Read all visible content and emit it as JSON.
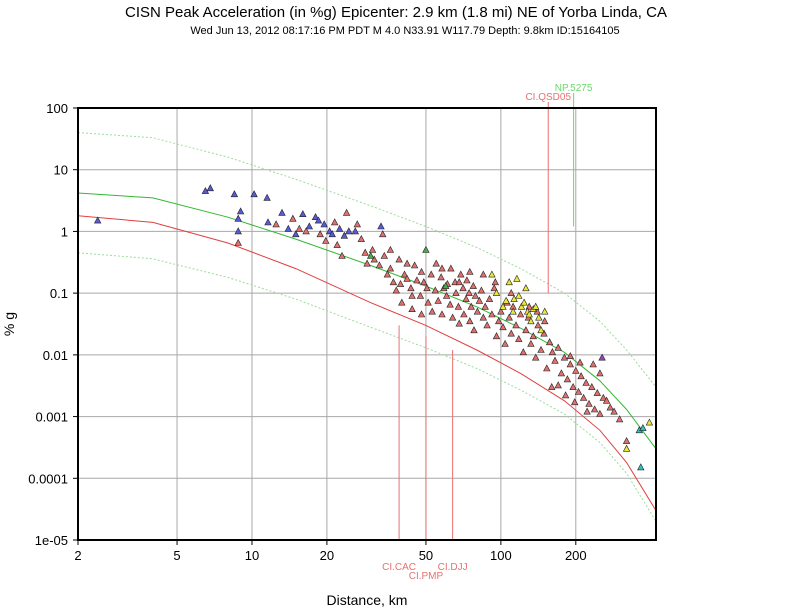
{
  "chart_data": {
    "type": "scatter",
    "title": "CISN Peak Acceleration (in %g) Epicenter: 2.9 km (1.8 mi) NE of Yorba Linda, CA",
    "subtitle": "Wed Jun 13, 2012 08:17:16 PM PDT   M 4.0    N33.91 W117.79   Depth: 9.8km   ID:15164105",
    "xlabel": "Distance, km",
    "ylabel": "% g",
    "xscale": "log",
    "yscale": "log",
    "xlim": [
      2,
      420
    ],
    "ylim": [
      1e-05,
      100
    ],
    "grid": true,
    "x_ticks": [
      {
        "v": 2,
        "label": "2"
      },
      {
        "v": 5,
        "label": "5"
      },
      {
        "v": 10,
        "label": "10"
      },
      {
        "v": 20,
        "label": "20"
      },
      {
        "v": 50,
        "label": "50"
      },
      {
        "v": 100,
        "label": "100"
      },
      {
        "v": 200,
        "label": "200"
      }
    ],
    "y_ticks": [
      {
        "v": 100,
        "label": "100"
      },
      {
        "v": 10,
        "label": "10"
      },
      {
        "v": 1,
        "label": "1"
      },
      {
        "v": 0.1,
        "label": "0.1"
      },
      {
        "v": 0.01,
        "label": "0.01"
      },
      {
        "v": 0.001,
        "label": "0.001"
      },
      {
        "v": 0.0001,
        "label": "0.0001"
      },
      {
        "v": 1e-05,
        "label": "1e-05"
      }
    ],
    "curves": [
      {
        "id": "upper-bound",
        "color": "#9bdc9b",
        "dash": true,
        "x": [
          2,
          4,
          8,
          15,
          30,
          50,
          80,
          120,
          180,
          250,
          320,
          420
        ],
        "y": [
          40,
          33,
          16,
          7,
          2.6,
          1.2,
          0.55,
          0.25,
          0.1,
          0.035,
          0.012,
          0.003
        ]
      },
      {
        "id": "median-green",
        "color": "#33b833",
        "dash": false,
        "x": [
          2,
          4,
          8,
          15,
          30,
          50,
          80,
          120,
          180,
          250,
          320,
          420
        ],
        "y": [
          4.2,
          3.5,
          1.7,
          0.75,
          0.28,
          0.13,
          0.06,
          0.027,
          0.011,
          0.0038,
          0.0013,
          0.0003
        ]
      },
      {
        "id": "median-red",
        "color": "#e04040",
        "dash": false,
        "x": [
          2,
          4,
          8,
          15,
          30,
          50,
          80,
          120,
          180,
          250,
          320,
          420
        ],
        "y": [
          1.8,
          1.4,
          0.65,
          0.25,
          0.07,
          0.03,
          0.012,
          0.005,
          0.0018,
          0.0006,
          0.00018,
          3e-05
        ]
      },
      {
        "id": "lower-bound",
        "color": "#9bdc9b",
        "dash": true,
        "x": [
          2,
          4,
          8,
          15,
          30,
          50,
          80,
          120,
          180,
          250,
          320,
          420
        ],
        "y": [
          0.45,
          0.36,
          0.18,
          0.08,
          0.028,
          0.013,
          0.006,
          0.0027,
          0.0011,
          0.00038,
          0.00012,
          2e-05
        ]
      }
    ],
    "station_labels": [
      {
        "text": "NP.5275",
        "x": 196,
        "y": 1.2,
        "color": "#6cd86c",
        "side": "top",
        "row": 0
      },
      {
        "text": "CI.QSD05",
        "x": 155,
        "y": 0.1,
        "color": "#e87070",
        "side": "top",
        "row": 1
      },
      {
        "text": "CI.CAC",
        "x": 39,
        "y": 0.03,
        "color": "#e87070",
        "side": "bottom",
        "row": 0
      },
      {
        "text": "CI.PMP",
        "x": 50,
        "y": 0.02,
        "color": "#e87070",
        "side": "bottom",
        "row": 1
      },
      {
        "text": "CI.DJJ",
        "x": 64,
        "y": 0.012,
        "color": "#e87070",
        "side": "bottom",
        "row": 0
      }
    ],
    "series": [
      {
        "color": "#5a5ad6",
        "points": [
          [
            2.4,
            1.5
          ],
          [
            6.5,
            4.5
          ],
          [
            6.8,
            5.0
          ],
          [
            8.5,
            4.0
          ],
          [
            8.8,
            1.6
          ],
          [
            9.0,
            2.1
          ],
          [
            10.2,
            4.0
          ],
          [
            11.5,
            3.5
          ],
          [
            11.6,
            1.4
          ],
          [
            13.2,
            2.0
          ],
          [
            14.0,
            1.1
          ],
          [
            16.0,
            1.9
          ],
          [
            17.0,
            1.2
          ],
          [
            18.0,
            1.7
          ],
          [
            18.5,
            1.5
          ],
          [
            19.5,
            1.3
          ],
          [
            20.5,
            1.0
          ],
          [
            21.0,
            0.9
          ],
          [
            22.5,
            1.1
          ],
          [
            24.5,
            1.0
          ],
          [
            26.0,
            1.0
          ],
          [
            33.0,
            1.2
          ],
          [
            8.8,
            1.0
          ],
          [
            15.0,
            0.9
          ],
          [
            23.5,
            0.85
          ]
        ]
      },
      {
        "color": "#e07070",
        "points": [
          [
            8.8,
            0.65
          ],
          [
            12.5,
            1.3
          ],
          [
            14.6,
            1.6
          ],
          [
            15.5,
            1.1
          ],
          [
            16.5,
            1.0
          ],
          [
            18.8,
            0.9
          ],
          [
            19.8,
            0.7
          ],
          [
            21.5,
            1.4
          ],
          [
            22.0,
            0.6
          ],
          [
            23.0,
            0.4
          ],
          [
            24.0,
            2.0
          ],
          [
            26.5,
            1.3
          ],
          [
            27.5,
            0.75
          ],
          [
            28.5,
            0.45
          ],
          [
            29.0,
            0.3
          ],
          [
            30.5,
            0.5
          ],
          [
            31.0,
            0.35
          ],
          [
            32.5,
            0.28
          ],
          [
            33.5,
            0.9
          ],
          [
            34.0,
            0.4
          ],
          [
            35.0,
            0.2
          ],
          [
            36.0,
            0.25
          ],
          [
            37.0,
            0.15
          ],
          [
            38.0,
            0.11
          ],
          [
            39.0,
            0.35
          ],
          [
            39.5,
            0.14
          ],
          [
            40.0,
            0.07
          ],
          [
            41.0,
            0.2
          ],
          [
            42.0,
            0.17
          ],
          [
            43.5,
            0.12
          ],
          [
            44.0,
            0.055
          ],
          [
            45.0,
            0.28
          ],
          [
            46.0,
            0.16
          ],
          [
            47.5,
            0.09
          ],
          [
            48.0,
            0.045
          ],
          [
            49.0,
            0.15
          ],
          [
            50.5,
            0.12
          ],
          [
            51.0,
            0.07
          ],
          [
            52.5,
            0.2
          ],
          [
            53.0,
            0.05
          ],
          [
            54.5,
            0.11
          ],
          [
            55.0,
            0.3
          ],
          [
            56.0,
            0.075
          ],
          [
            57.5,
            0.18
          ],
          [
            58.0,
            0.045
          ],
          [
            59.0,
            0.12
          ],
          [
            60.5,
            0.09
          ],
          [
            61.0,
            0.14
          ],
          [
            62.5,
            0.065
          ],
          [
            63.0,
            0.25
          ],
          [
            64.0,
            0.04
          ],
          [
            65.5,
            0.15
          ],
          [
            66.0,
            0.1
          ],
          [
            67.5,
            0.06
          ],
          [
            68.0,
            0.032
          ],
          [
            69.0,
            0.2
          ],
          [
            70.5,
            0.12
          ],
          [
            71.0,
            0.045
          ],
          [
            72.5,
            0.08
          ],
          [
            73.0,
            0.16
          ],
          [
            74.5,
            0.1
          ],
          [
            75.0,
            0.035
          ],
          [
            76.0,
            0.06
          ],
          [
            77.5,
            0.13
          ],
          [
            78.0,
            0.025
          ],
          [
            79.0,
            0.09
          ],
          [
            80.5,
            0.05
          ],
          [
            82.0,
            0.075
          ],
          [
            83.5,
            0.11
          ],
          [
            85.0,
            0.04
          ],
          [
            86.5,
            0.06
          ],
          [
            88.0,
            0.03
          ],
          [
            90.0,
            0.08
          ],
          [
            92.0,
            0.045
          ],
          [
            94.0,
            0.12
          ],
          [
            96.0,
            0.02
          ],
          [
            98.0,
            0.035
          ],
          [
            100.0,
            0.05
          ],
          [
            102.0,
            0.028
          ],
          [
            104.0,
            0.015
          ],
          [
            106.0,
            0.07
          ],
          [
            108.0,
            0.04
          ],
          [
            110.0,
            0.022
          ],
          [
            112.0,
            0.06
          ],
          [
            115.0,
            0.03
          ],
          [
            118.0,
            0.018
          ],
          [
            120.0,
            0.045
          ],
          [
            123.0,
            0.011
          ],
          [
            126.0,
            0.025
          ],
          [
            129.0,
            0.04
          ],
          [
            132.0,
            0.015
          ],
          [
            135.0,
            0.02
          ],
          [
            138.0,
            0.009
          ],
          [
            141.0,
            0.03
          ],
          [
            145.0,
            0.012
          ],
          [
            149.0,
            0.022
          ],
          [
            153.0,
            0.006
          ],
          [
            157.0,
            0.016
          ],
          [
            161.0,
            0.011
          ],
          [
            165.0,
            0.008
          ],
          [
            170.0,
            0.013
          ],
          [
            175.0,
            0.005
          ],
          [
            180.0,
            0.009
          ],
          [
            185.0,
            0.004
          ],
          [
            190.0,
            0.007
          ],
          [
            195.0,
            0.003
          ],
          [
            200.0,
            0.0055
          ],
          [
            205.0,
            0.0025
          ],
          [
            210.0,
            0.0045
          ],
          [
            215.0,
            0.002
          ],
          [
            220.0,
            0.0035
          ],
          [
            226.0,
            0.0016
          ],
          [
            232.0,
            0.003
          ],
          [
            238.0,
            0.0013
          ],
          [
            244.0,
            0.0024
          ],
          [
            250.0,
            0.0011
          ],
          [
            258.0,
            0.002
          ],
          [
            266.0,
            0.0018
          ],
          [
            275.0,
            0.0014
          ],
          [
            285.0,
            0.0012
          ],
          [
            300.0,
            0.0009
          ],
          [
            320.0,
            0.0004
          ],
          [
            235.0,
            0.007
          ],
          [
            250.0,
            0.005
          ],
          [
            208.0,
            0.0075
          ],
          [
            190.0,
            0.0095
          ],
          [
            170.0,
            0.0032
          ],
          [
            160.0,
            0.003
          ],
          [
            182.0,
            0.0022
          ],
          [
            198.0,
            0.0017
          ],
          [
            222.0,
            0.0012
          ],
          [
            130.0,
            0.06
          ],
          [
            140.0,
            0.05
          ],
          [
            150.0,
            0.035
          ],
          [
            110.0,
            0.1
          ],
          [
            95.0,
            0.15
          ],
          [
            85.0,
            0.2
          ],
          [
            75.0,
            0.22
          ],
          [
            68.0,
            0.15
          ],
          [
            58.0,
            0.25
          ],
          [
            48.0,
            0.22
          ],
          [
            44.0,
            0.09
          ],
          [
            36.0,
            0.5
          ],
          [
            42.0,
            0.3
          ]
        ]
      },
      {
        "color": "#e8e83a",
        "points": [
          [
            92.0,
            0.2
          ],
          [
            102.0,
            0.06
          ],
          [
            108.0,
            0.15
          ],
          [
            112.0,
            0.05
          ],
          [
            116.0,
            0.17
          ],
          [
            118.0,
            0.09
          ],
          [
            121.0,
            0.06
          ],
          [
            124.0,
            0.07
          ],
          [
            126.0,
            0.12
          ],
          [
            128.0,
            0.05
          ],
          [
            130.0,
            0.045
          ],
          [
            132.0,
            0.035
          ],
          [
            135.0,
            0.055
          ],
          [
            138.0,
            0.06
          ],
          [
            142.0,
            0.04
          ],
          [
            145.0,
            0.025
          ],
          [
            105.0,
            0.075
          ],
          [
            96.0,
            0.1
          ],
          [
            150.0,
            0.05
          ],
          [
            113.0,
            0.08
          ],
          [
            320.0,
            0.0003
          ],
          [
            395.0,
            0.0008
          ]
        ]
      },
      {
        "color": "#44b044",
        "points": [
          [
            30.0,
            0.4
          ],
          [
            50.0,
            0.5
          ],
          [
            60.0,
            0.13
          ]
        ]
      },
      {
        "color": "#30c0c0",
        "points": [
          [
            360.0,
            0.0006
          ],
          [
            372.0,
            0.00065
          ],
          [
            365.0,
            0.00015
          ]
        ]
      },
      {
        "color": "#a040c0",
        "points": [
          [
            255.0,
            0.009
          ]
        ]
      }
    ]
  }
}
